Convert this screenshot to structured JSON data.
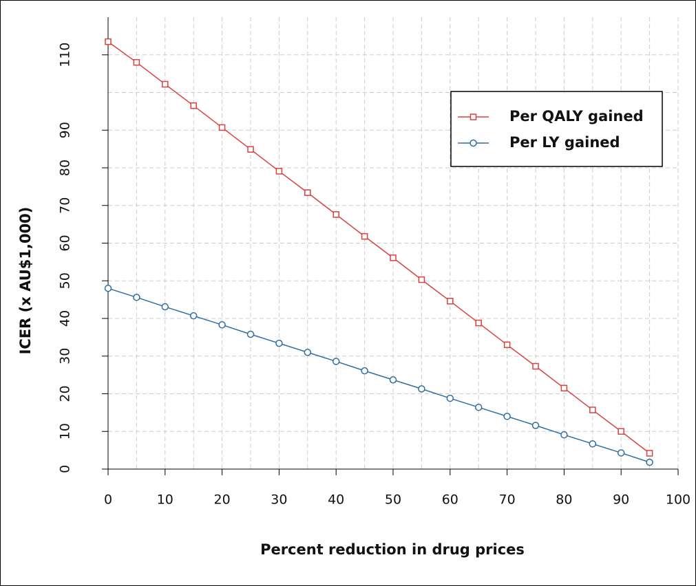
{
  "chart_data": {
    "type": "line",
    "xlabel": "Percent reduction in drug prices",
    "ylabel": "ICER (x AU$1,000)",
    "x": [
      0,
      5,
      10,
      15,
      20,
      25,
      30,
      35,
      40,
      45,
      50,
      55,
      60,
      65,
      70,
      75,
      80,
      85,
      90,
      95
    ],
    "series": [
      {
        "name": "Per QALY gained",
        "color": "#d9413e",
        "marker": "square",
        "values": [
          113.5,
          108,
          102.2,
          96.5,
          90.7,
          84.9,
          79.1,
          73.4,
          67.6,
          61.8,
          56.1,
          50.3,
          44.6,
          38.8,
          33.0,
          27.3,
          21.5,
          15.7,
          10.0,
          4.2
        ]
      },
      {
        "name": "Per LY gained",
        "color": "#2e6da4",
        "marker": "circle",
        "values": [
          48.0,
          45.6,
          43.1,
          40.7,
          38.3,
          35.8,
          33.4,
          31.0,
          28.6,
          26.1,
          23.7,
          21.3,
          18.8,
          16.4,
          14.0,
          11.6,
          9.1,
          6.7,
          4.3,
          1.8
        ]
      }
    ],
    "xlim": [
      0,
      100
    ],
    "xticks": [
      0,
      10,
      20,
      30,
      40,
      50,
      60,
      70,
      80,
      90,
      100
    ],
    "ylim": [
      0,
      120
    ],
    "yticks": [
      0,
      10,
      20,
      30,
      40,
      50,
      60,
      70,
      80,
      90,
      110
    ],
    "grid": true,
    "xgrid": [
      0,
      5,
      10,
      15,
      20,
      25,
      30,
      35,
      40,
      45,
      50,
      55,
      60,
      65,
      70,
      75,
      80,
      85,
      90,
      95,
      100
    ],
    "ygrid": [
      0,
      10,
      20,
      30,
      40,
      50,
      60,
      70,
      80,
      90,
      100,
      110
    ],
    "legend": "upper right"
  }
}
